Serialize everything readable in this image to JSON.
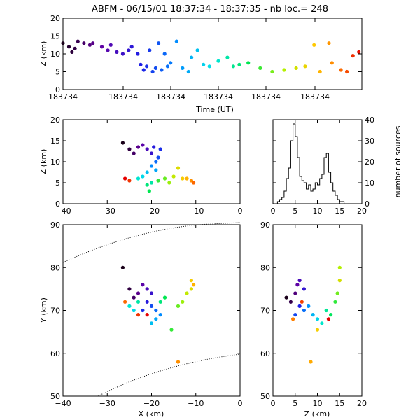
{
  "title": "ABFM - 06/15/01 18:37:34 - 18:37:35 - nb loc.=     248",
  "panels": {
    "time_height": {
      "xlabel": "Time (UT)",
      "ylabel": "Z (km)",
      "xticks": [
        "183734",
        "183734",
        "183734",
        "183734",
        "183734",
        "183734"
      ],
      "yticks": [
        "0",
        "5",
        "10",
        "15",
        "20"
      ]
    },
    "xz": {
      "ylabel": "Z (km)",
      "xticks": [
        "−40",
        "−30",
        "−20",
        "−10",
        "0"
      ],
      "yticks": [
        "0",
        "5",
        "10",
        "15",
        "20"
      ]
    },
    "histogram": {
      "ylabel": "number of sources",
      "xticks": [
        "0",
        "5",
        "10",
        "15",
        "20"
      ],
      "yticks": [
        "0",
        "10",
        "20",
        "30",
        "40"
      ]
    },
    "plan": {
      "xlabel": "X (km)",
      "ylabel": "Y (km)",
      "xticks": [
        "−40",
        "−30",
        "−20",
        "−10",
        "0"
      ],
      "yticks": [
        "50",
        "60",
        "70",
        "80",
        "90"
      ]
    },
    "zy": {
      "xlabel": "Z (km)",
      "xticks": [
        "0",
        "5",
        "10",
        "15",
        "20"
      ],
      "yticks": [
        "50",
        "60",
        "70",
        "80",
        "90"
      ]
    }
  },
  "chart_data": [
    {
      "panel": "time_height",
      "type": "scatter",
      "xlim": [
        0,
        1
      ],
      "ylim": [
        0,
        20
      ],
      "color_encoding": "time (purple → red)",
      "points": [
        {
          "t": 0.0,
          "z": 13
        },
        {
          "t": 0.02,
          "z": 12
        },
        {
          "t": 0.03,
          "z": 10.5
        },
        {
          "t": 0.04,
          "z": 11.5
        },
        {
          "t": 0.05,
          "z": 13.5
        },
        {
          "t": 0.07,
          "z": 13
        },
        {
          "t": 0.09,
          "z": 12.5
        },
        {
          "t": 0.1,
          "z": 13
        },
        {
          "t": 0.13,
          "z": 12
        },
        {
          "t": 0.15,
          "z": 11
        },
        {
          "t": 0.16,
          "z": 12.5
        },
        {
          "t": 0.18,
          "z": 10.5
        },
        {
          "t": 0.2,
          "z": 10
        },
        {
          "t": 0.22,
          "z": 11
        },
        {
          "t": 0.23,
          "z": 12
        },
        {
          "t": 0.25,
          "z": 10
        },
        {
          "t": 0.26,
          "z": 7
        },
        {
          "t": 0.27,
          "z": 5.5
        },
        {
          "t": 0.28,
          "z": 6.5
        },
        {
          "t": 0.29,
          "z": 11
        },
        {
          "t": 0.3,
          "z": 5
        },
        {
          "t": 0.31,
          "z": 6
        },
        {
          "t": 0.32,
          "z": 13
        },
        {
          "t": 0.33,
          "z": 5.5
        },
        {
          "t": 0.34,
          "z": 10
        },
        {
          "t": 0.35,
          "z": 6.5
        },
        {
          "t": 0.36,
          "z": 7.5
        },
        {
          "t": 0.38,
          "z": 13.5
        },
        {
          "t": 0.4,
          "z": 6
        },
        {
          "t": 0.42,
          "z": 5
        },
        {
          "t": 0.43,
          "z": 9
        },
        {
          "t": 0.45,
          "z": 11
        },
        {
          "t": 0.47,
          "z": 7
        },
        {
          "t": 0.49,
          "z": 6.5
        },
        {
          "t": 0.52,
          "z": 8
        },
        {
          "t": 0.55,
          "z": 9
        },
        {
          "t": 0.57,
          "z": 6.5
        },
        {
          "t": 0.59,
          "z": 7
        },
        {
          "t": 0.62,
          "z": 7.5
        },
        {
          "t": 0.66,
          "z": 6
        },
        {
          "t": 0.7,
          "z": 5
        },
        {
          "t": 0.74,
          "z": 5.5
        },
        {
          "t": 0.78,
          "z": 6
        },
        {
          "t": 0.81,
          "z": 6.5
        },
        {
          "t": 0.84,
          "z": 12.5
        },
        {
          "t": 0.86,
          "z": 5
        },
        {
          "t": 0.89,
          "z": 13
        },
        {
          "t": 0.9,
          "z": 7.5
        },
        {
          "t": 0.93,
          "z": 5.5
        },
        {
          "t": 0.95,
          "z": 5
        },
        {
          "t": 0.97,
          "z": 9.5
        },
        {
          "t": 0.99,
          "z": 10.5
        }
      ]
    },
    {
      "panel": "xz",
      "type": "scatter",
      "xlim": [
        -40,
        0
      ],
      "ylim": [
        0,
        20
      ],
      "points": [
        {
          "x": -26.5,
          "z": 14.5
        },
        {
          "x": -25,
          "z": 13
        },
        {
          "x": -24,
          "z": 12
        },
        {
          "x": -23,
          "z": 13.5
        },
        {
          "x": -22,
          "z": 14
        },
        {
          "x": -21,
          "z": 13
        },
        {
          "x": -20,
          "z": 12
        },
        {
          "x": -19.5,
          "z": 13.5
        },
        {
          "x": -18,
          "z": 13
        },
        {
          "x": -18.5,
          "z": 11
        },
        {
          "x": -19,
          "z": 10
        },
        {
          "x": -20,
          "z": 9
        },
        {
          "x": -19,
          "z": 8
        },
        {
          "x": -21,
          "z": 7.5
        },
        {
          "x": -22,
          "z": 6.5
        },
        {
          "x": -23,
          "z": 6
        },
        {
          "x": -20,
          "z": 5
        },
        {
          "x": -21,
          "z": 4.5
        },
        {
          "x": -20.5,
          "z": 3
        },
        {
          "x": -18.5,
          "z": 5.5
        },
        {
          "x": -17,
          "z": 6
        },
        {
          "x": -16,
          "z": 5
        },
        {
          "x": -15,
          "z": 6.5
        },
        {
          "x": -14,
          "z": 8.5
        },
        {
          "x": -13,
          "z": 6
        },
        {
          "x": -12,
          "z": 6
        },
        {
          "x": -11,
          "z": 5.5
        },
        {
          "x": -10.5,
          "z": 5
        },
        {
          "x": -25,
          "z": 5.5
        },
        {
          "x": -26,
          "z": 6
        }
      ]
    },
    {
      "panel": "histogram",
      "type": "bar",
      "xlim": [
        0,
        20
      ],
      "ylim": [
        0,
        40
      ],
      "bin_width": 0.5,
      "bin_start": 1,
      "values": [
        1,
        2,
        3,
        6,
        12,
        17,
        30,
        38,
        32,
        22,
        13,
        11,
        10,
        7,
        9,
        6,
        7,
        10,
        9,
        12,
        14,
        22,
        24,
        15,
        10,
        6,
        4,
        2,
        1,
        1
      ]
    },
    {
      "panel": "plan",
      "type": "scatter",
      "xlim": [
        -40,
        0
      ],
      "ylim": [
        50,
        90
      ],
      "points": [
        {
          "x": -26.5,
          "y": 80
        },
        {
          "x": -25,
          "y": 75
        },
        {
          "x": -24,
          "y": 73
        },
        {
          "x": -23,
          "y": 74
        },
        {
          "x": -22,
          "y": 76
        },
        {
          "x": -21,
          "y": 75
        },
        {
          "x": -20,
          "y": 74
        },
        {
          "x": -21,
          "y": 72
        },
        {
          "x": -22,
          "y": 70
        },
        {
          "x": -20,
          "y": 71
        },
        {
          "x": -19,
          "y": 70
        },
        {
          "x": -18,
          "y": 69
        },
        {
          "x": -19,
          "y": 68
        },
        {
          "x": -20,
          "y": 67
        },
        {
          "x": -24,
          "y": 70
        },
        {
          "x": -25,
          "y": 71
        },
        {
          "x": -23,
          "y": 72
        },
        {
          "x": -18,
          "y": 72
        },
        {
          "x": -17,
          "y": 73
        },
        {
          "x": -15.5,
          "y": 65.5
        },
        {
          "x": -14,
          "y": 71
        },
        {
          "x": -13,
          "y": 72
        },
        {
          "x": -12,
          "y": 74
        },
        {
          "x": -11,
          "y": 75
        },
        {
          "x": -11,
          "y": 77
        },
        {
          "x": -10.5,
          "y": 76
        },
        {
          "x": -14,
          "y": 58
        },
        {
          "x": -26,
          "y": 72
        },
        {
          "x": -23,
          "y": 69
        },
        {
          "x": -21,
          "y": 69
        }
      ]
    },
    {
      "panel": "zy",
      "type": "scatter",
      "xlim": [
        0,
        20
      ],
      "ylim": [
        50,
        90
      ],
      "points": [
        {
          "z": 3,
          "y": 73
        },
        {
          "z": 4,
          "y": 72
        },
        {
          "z": 5,
          "y": 74
        },
        {
          "z": 5.5,
          "y": 76
        },
        {
          "z": 6,
          "y": 77
        },
        {
          "z": 7,
          "y": 75
        },
        {
          "z": 6,
          "y": 71
        },
        {
          "z": 5,
          "y": 69
        },
        {
          "z": 7,
          "y": 70
        },
        {
          "z": 8,
          "y": 71
        },
        {
          "z": 9,
          "y": 69
        },
        {
          "z": 10,
          "y": 68
        },
        {
          "z": 11,
          "y": 67
        },
        {
          "z": 12,
          "y": 70
        },
        {
          "z": 13,
          "y": 69
        },
        {
          "z": 14,
          "y": 72
        },
        {
          "z": 14.5,
          "y": 74
        },
        {
          "z": 15,
          "y": 80
        },
        {
          "z": 15,
          "y": 77
        },
        {
          "z": 10,
          "y": 65.5
        },
        {
          "z": 8.5,
          "y": 58
        },
        {
          "z": 4.5,
          "y": 68
        },
        {
          "z": 6.5,
          "y": 72
        },
        {
          "z": 12.5,
          "y": 68
        }
      ]
    }
  ]
}
